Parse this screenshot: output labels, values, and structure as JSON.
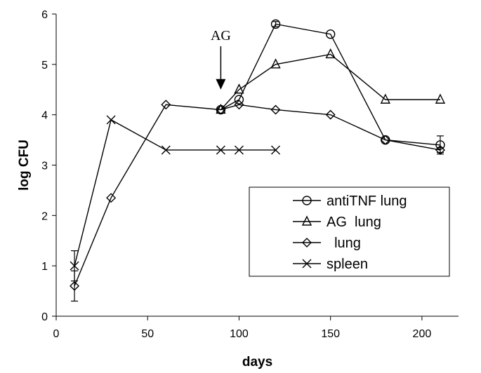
{
  "chart_data": {
    "type": "line",
    "xlabel": "days",
    "ylabel": "log CFU",
    "xlim": [
      0,
      220
    ],
    "ylim": [
      0,
      6
    ],
    "xticks": [
      0,
      50,
      100,
      150,
      200
    ],
    "yticks": [
      0,
      1,
      2,
      3,
      4,
      5,
      6
    ],
    "grid": false,
    "legend_position": "bottom-right",
    "annotation": {
      "label": "AG",
      "x": 90,
      "arrow_tip_y": 4.5
    },
    "series": [
      {
        "name": "antiTNF lung",
        "marker": "circle",
        "x": [
          90,
          100,
          120,
          150,
          180,
          210
        ],
        "y": [
          4.1,
          4.3,
          5.8,
          5.6,
          3.5,
          3.4
        ],
        "error": [
          0,
          0,
          0.05,
          0,
          0,
          0.18
        ]
      },
      {
        "name": "AG  lung",
        "marker": "triangle",
        "x": [
          90,
          100,
          120,
          150,
          180,
          210
        ],
        "y": [
          4.1,
          4.5,
          5.0,
          5.2,
          4.3,
          4.3
        ],
        "error": [
          0,
          0,
          0,
          0,
          0,
          0
        ]
      },
      {
        "name": "  lung",
        "marker": "diamond",
        "x": [
          10,
          30,
          60,
          90,
          100,
          120,
          150,
          180,
          210
        ],
        "y": [
          0.6,
          2.35,
          4.2,
          4.1,
          4.2,
          4.1,
          4.0,
          3.5,
          3.3
        ],
        "error": [
          0.3,
          0,
          0,
          0,
          0,
          0,
          0,
          0,
          0.05
        ]
      },
      {
        "name": "spleen",
        "marker": "x",
        "x": [
          10,
          30,
          60,
          90,
          100,
          120
        ],
        "y": [
          1.0,
          3.9,
          3.3,
          3.3,
          3.3,
          3.3
        ],
        "error": [
          0.3,
          0,
          0,
          0,
          0,
          0
        ]
      }
    ]
  }
}
